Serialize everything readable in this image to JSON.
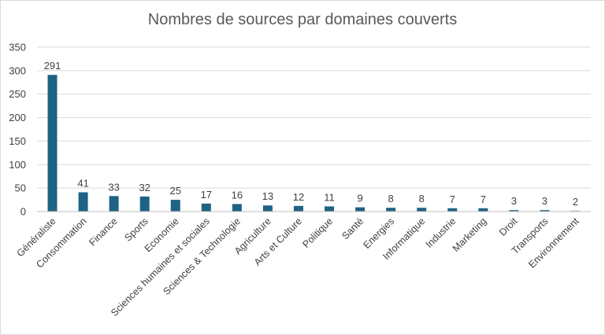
{
  "chart_data": {
    "type": "bar",
    "title": "Nombres de sources par domaines couverts",
    "xlabel": "",
    "ylabel": "",
    "ylim": [
      0,
      350
    ],
    "yticks": [
      0,
      50,
      100,
      150,
      200,
      250,
      300,
      350
    ],
    "grid": true,
    "legend": "none",
    "categories": [
      "Généraliste",
      "Consommation",
      "Finance",
      "Sports",
      "Economie",
      "Sciences humaines et sociales",
      "Sciences & Technologie",
      "Agriculture",
      "Arts et Culture",
      "Politique",
      "Santé",
      "Energies",
      "Informatique",
      "Industrie",
      "Marketing",
      "Droit",
      "Transports",
      "Environnement"
    ],
    "values": [
      291,
      41,
      33,
      32,
      25,
      17,
      16,
      13,
      12,
      11,
      9,
      8,
      8,
      7,
      7,
      3,
      3,
      2
    ],
    "colors": {
      "bar": "#1f6384",
      "bar_last": "#8eb1c7",
      "grid": "#d9d9d9",
      "axis": "#bfbfbf",
      "text": "#404040",
      "title": "#595959"
    }
  }
}
